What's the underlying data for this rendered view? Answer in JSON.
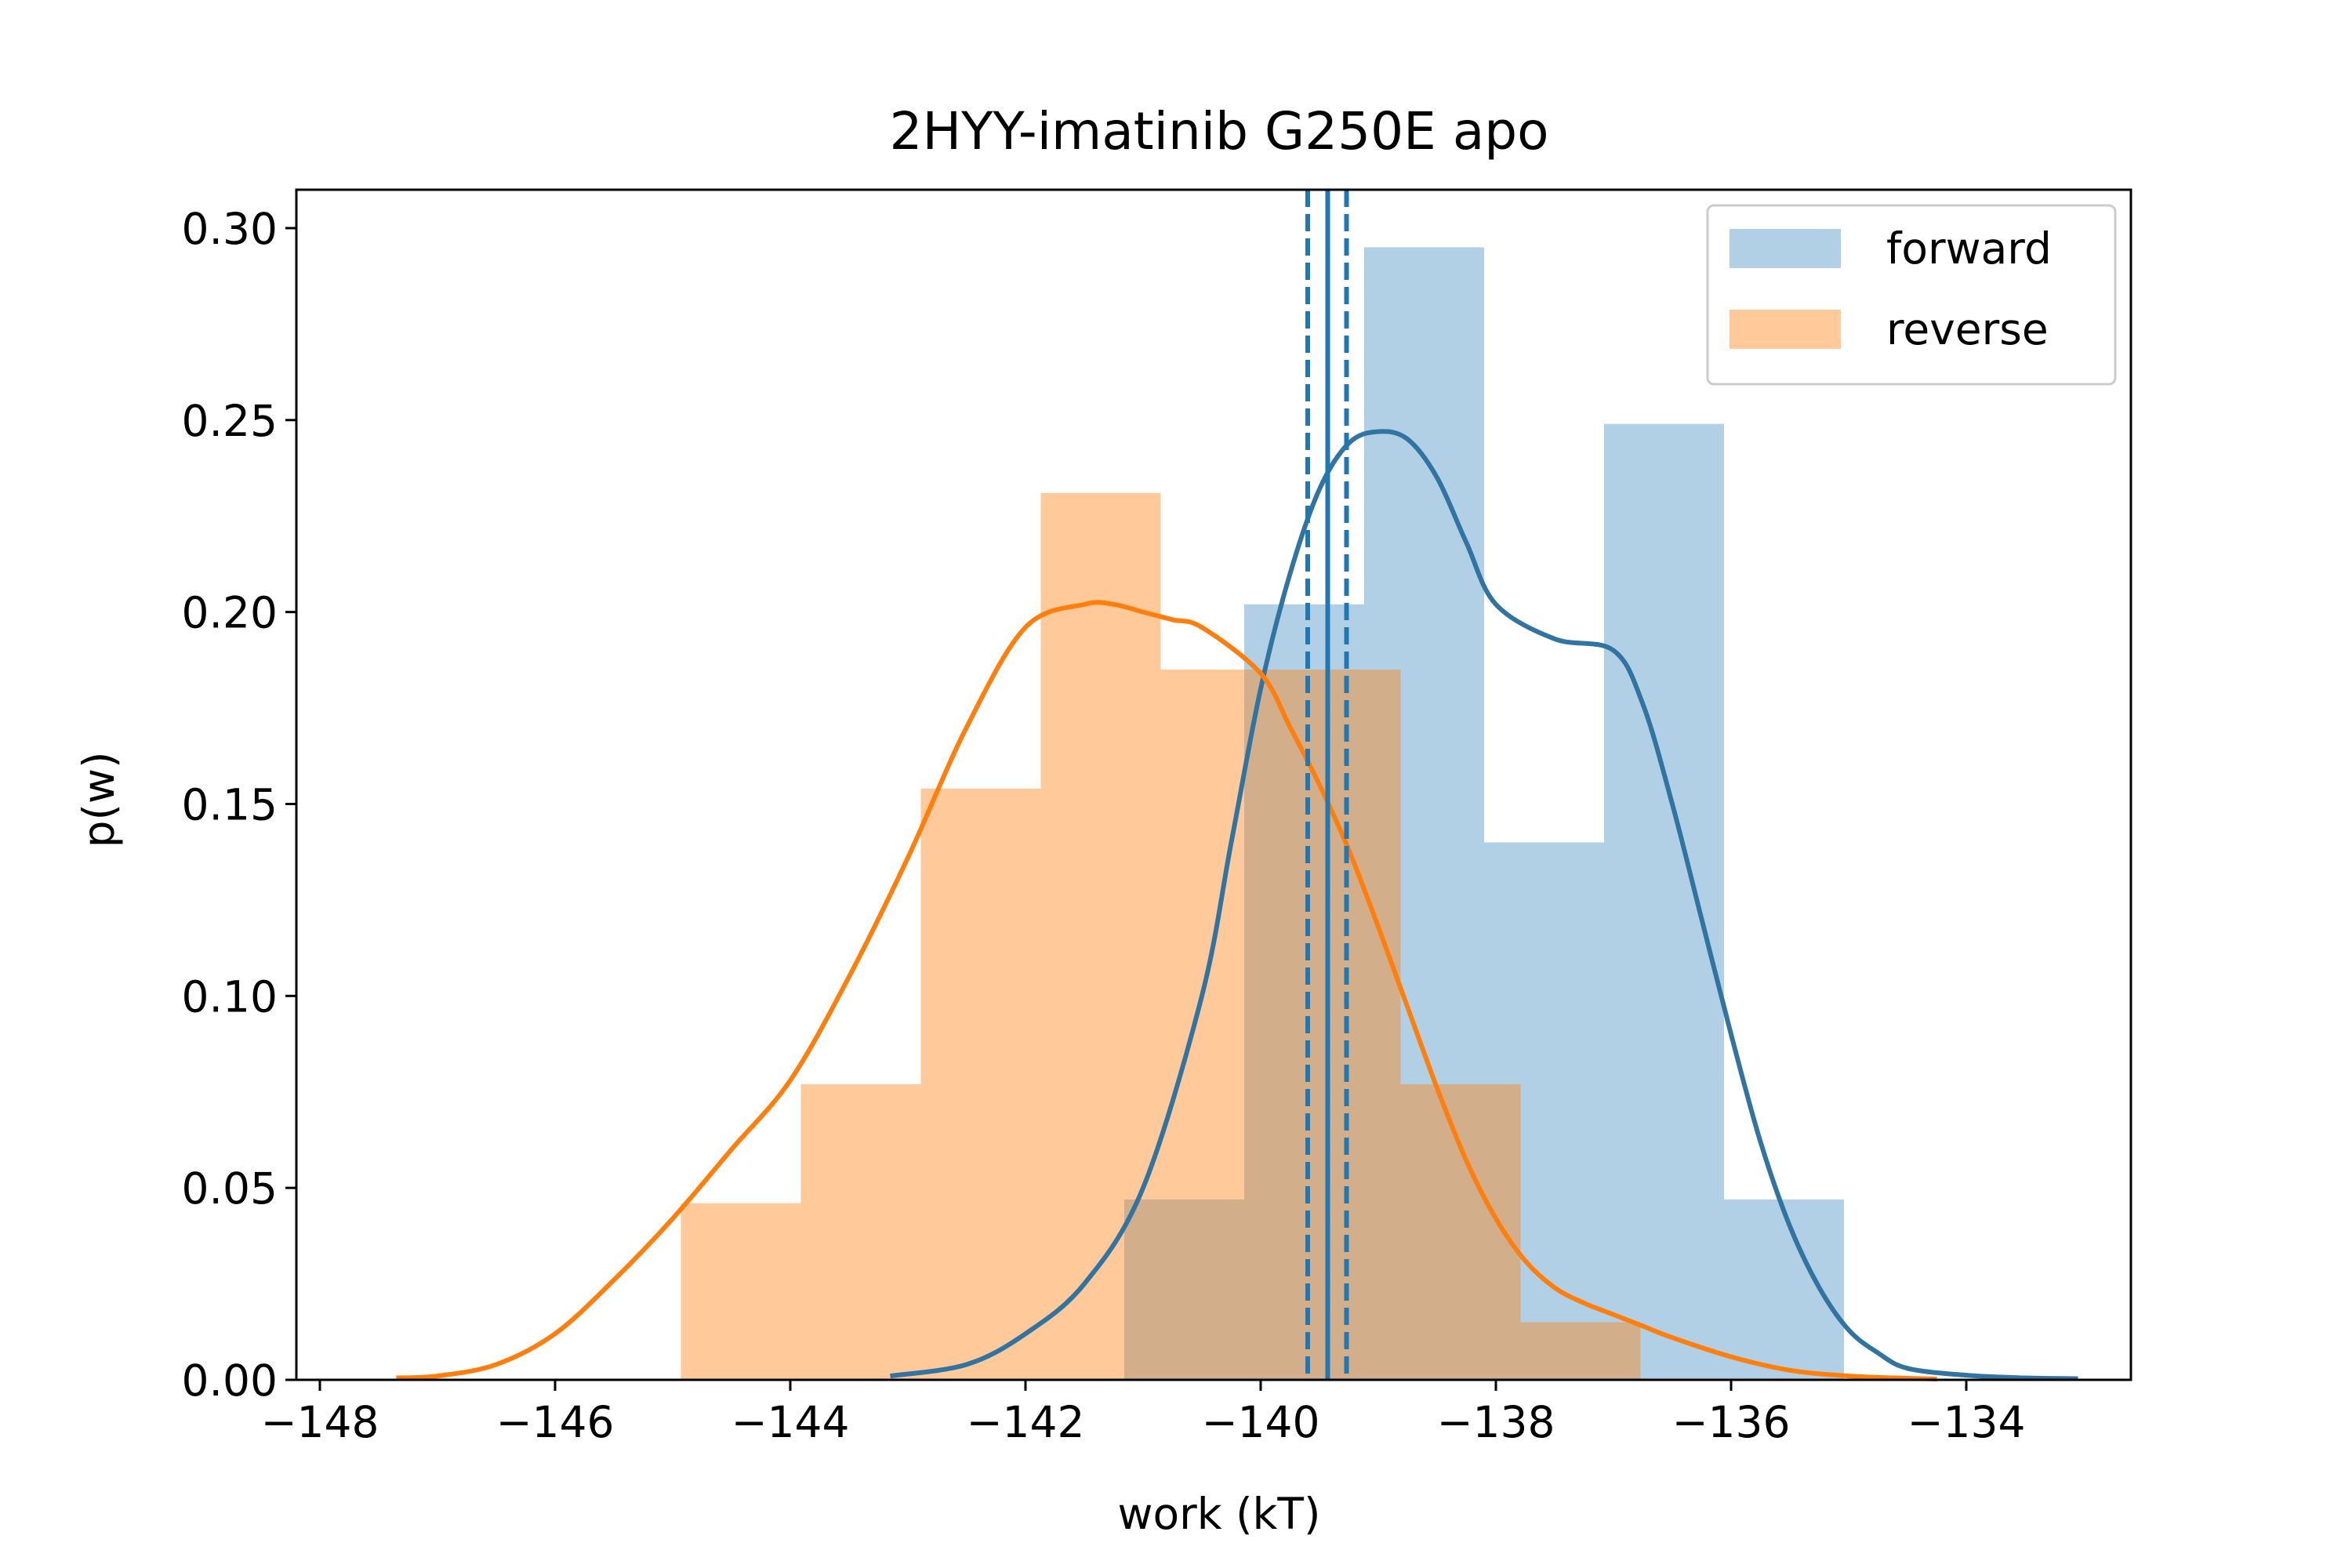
{
  "chart_data": {
    "type": "bar",
    "title": "2HYY-imatinib G250E apo",
    "xlabel": "work (kT)",
    "ylabel": "p(w)",
    "xlim": [
      -148.2,
      -132.6
    ],
    "ylim": [
      0,
      0.31
    ],
    "xticks": [
      -148,
      -146,
      -144,
      -142,
      -140,
      -138,
      -136,
      -134
    ],
    "xtick_labels": [
      "−148",
      "−146",
      "−144",
      "−142",
      "−140",
      "−138",
      "−136",
      "−134"
    ],
    "yticks": [
      0.0,
      0.05,
      0.1,
      0.15,
      0.2,
      0.25,
      0.3
    ],
    "ytick_labels": [
      "0.00",
      "0.05",
      "0.10",
      "0.15",
      "0.20",
      "0.25",
      "0.30"
    ],
    "legend_position": "top-right",
    "grid": false,
    "series": [
      {
        "name": "forward",
        "color": "#1f77b4",
        "kde_color": "#3274a1",
        "bar_opacity": 0.35,
        "bin_edges": [
          -141.16,
          -140.14,
          -139.12,
          -138.1,
          -137.08,
          -136.06,
          -135.04
        ],
        "values": [
          0.047,
          0.202,
          0.295,
          0.14,
          0.249,
          0.047
        ],
        "kde": {
          "x": [
            -143.15,
            -142.5,
            -142.0,
            -141.5,
            -141.0,
            -140.5,
            -140.25,
            -140.0,
            -139.75,
            -139.5,
            -139.25,
            -139.0,
            -138.75,
            -138.5,
            -138.25,
            -138.0,
            -137.5,
            -137.0,
            -136.75,
            -136.5,
            -136.25,
            -136.0,
            -135.75,
            -135.5,
            -135.25,
            -135.0,
            -134.75,
            -134.5,
            -134.0,
            -133.5,
            -133.05
          ],
          "y": [
            0.001,
            0.004,
            0.012,
            0.025,
            0.05,
            0.1,
            0.14,
            0.18,
            0.21,
            0.232,
            0.244,
            0.247,
            0.245,
            0.235,
            0.218,
            0.202,
            0.193,
            0.19,
            0.176,
            0.15,
            0.12,
            0.09,
            0.062,
            0.04,
            0.024,
            0.013,
            0.007,
            0.003,
            0.0012,
            0.0005,
            0.0003
          ]
        },
        "mean_line": -139.43,
        "ci_lines": [
          -139.6,
          -139.27
        ]
      },
      {
        "name": "reverse",
        "color": "#ff7f0e",
        "kde_color": "#ff7f0e",
        "bar_opacity": 0.42,
        "bin_edges": [
          -144.93,
          -143.91,
          -142.89,
          -141.87,
          -140.85,
          -139.83,
          -138.81,
          -137.79,
          -136.77
        ],
        "values": [
          0.046,
          0.077,
          0.154,
          0.231,
          0.185,
          0.185,
          0.077,
          0.015
        ],
        "kde": {
          "x": [
            -147.35,
            -147.0,
            -146.5,
            -146.0,
            -145.5,
            -145.0,
            -144.5,
            -144.0,
            -143.5,
            -143.0,
            -142.5,
            -142.0,
            -141.5,
            -141.25,
            -141.0,
            -140.75,
            -140.5,
            -140.0,
            -139.75,
            -139.5,
            -139.25,
            -139.0,
            -138.75,
            -138.5,
            -138.25,
            -138.0,
            -137.75,
            -137.5,
            -137.25,
            -137.0,
            -136.75,
            -136.5,
            -136.0,
            -135.5,
            -135.0,
            -134.5,
            -134.25
          ],
          "y": [
            0.0005,
            0.001,
            0.004,
            0.012,
            0.026,
            0.042,
            0.06,
            0.078,
            0.105,
            0.136,
            0.17,
            0.196,
            0.202,
            0.202,
            0.2,
            0.198,
            0.196,
            0.184,
            0.17,
            0.155,
            0.138,
            0.118,
            0.097,
            0.076,
            0.057,
            0.042,
            0.031,
            0.024,
            0.02,
            0.017,
            0.014,
            0.011,
            0.006,
            0.0025,
            0.001,
            0.0004,
            0.0002
          ]
        }
      }
    ]
  }
}
